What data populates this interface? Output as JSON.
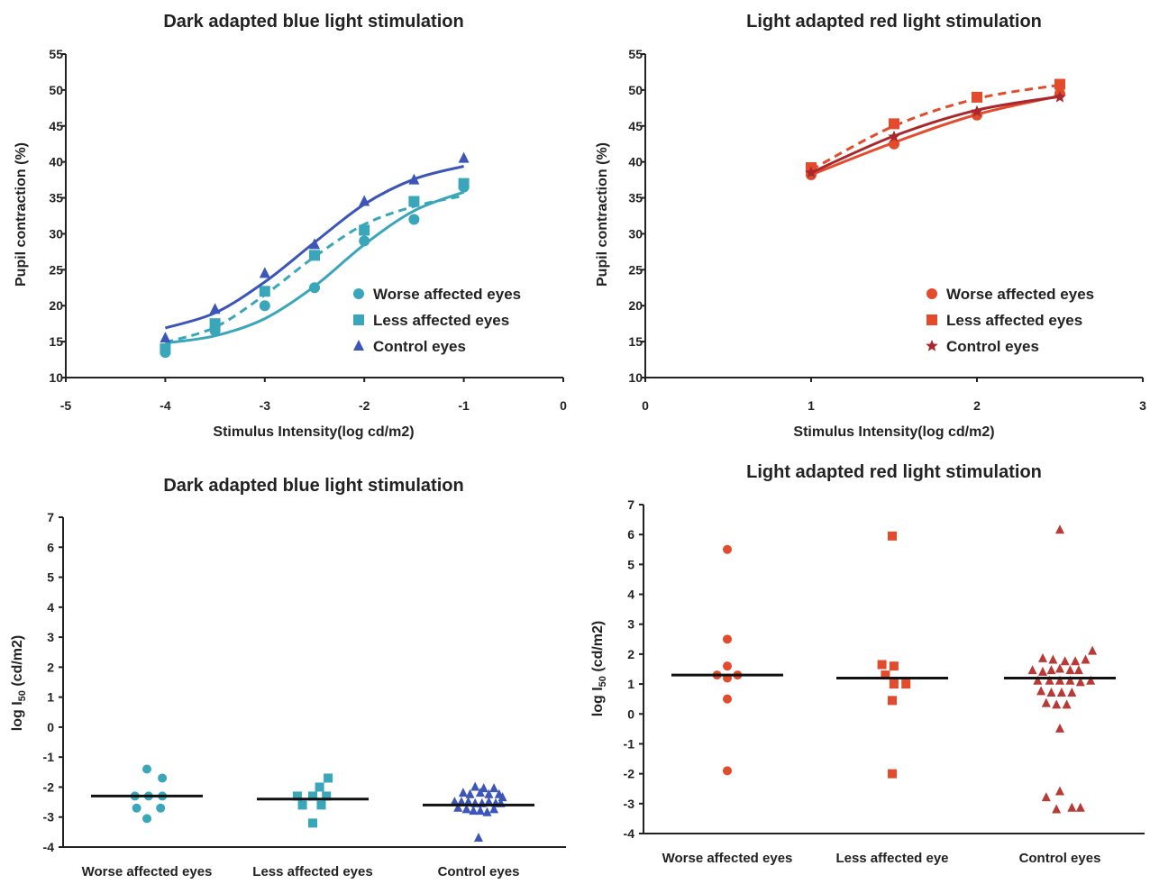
{
  "chart_data": [
    {
      "type": "line",
      "title": "Dark adapted blue light stimulation",
      "xlabel": "Stimulus Intensity(log cd/m2)",
      "ylabel": "Pupil contraction (%)",
      "xlim": [
        -5,
        0
      ],
      "ylim": [
        10,
        55
      ],
      "xticks": [
        "-5",
        "-4",
        "-3",
        "-2",
        "-1",
        "0"
      ],
      "yticks": [
        "10",
        "15",
        "20",
        "25",
        "30",
        "35",
        "40",
        "45",
        "50",
        "55"
      ],
      "legend_position": "bottom-right",
      "x": [
        -4,
        -3.5,
        -3,
        -2.5,
        -2,
        -1.5,
        -1
      ],
      "series": [
        {
          "name": "Worse affected eyes",
          "marker": "circle",
          "dash": "solid",
          "color": "#3aa6b9",
          "values": [
            13.5,
            16.5,
            20.0,
            22.5,
            29.0,
            32.0,
            36.5
          ],
          "fit": [
            14.8,
            15.8,
            18.2,
            22.7,
            28.5,
            33.2,
            35.8
          ]
        },
        {
          "name": "Less affected eyes",
          "marker": "square",
          "dash": "dashed",
          "color": "#3aa6b9",
          "values": [
            14.0,
            17.5,
            22.0,
            27.0,
            30.5,
            34.5,
            37.0
          ],
          "fit": [
            14.9,
            17.0,
            21.5,
            26.8,
            31.3,
            33.8,
            35.3
          ]
        },
        {
          "name": "Control eyes",
          "marker": "triangle",
          "dash": "solid",
          "color": "#3b55b8",
          "values": [
            15.5,
            19.5,
            24.5,
            28.5,
            34.5,
            37.5,
            40.5
          ],
          "fit": [
            16.9,
            19.0,
            23.3,
            28.8,
            34.1,
            37.6,
            39.4
          ]
        }
      ]
    },
    {
      "type": "line",
      "title": "Light adapted red light stimulation",
      "xlabel": "Stimulus Intensity(log cd/m2)",
      "ylabel": "Pupil contraction (%)",
      "xlim": [
        0,
        3
      ],
      "ylim": [
        10,
        55
      ],
      "xticks": [
        "0",
        "1",
        "2",
        "3"
      ],
      "yticks": [
        "10",
        "15",
        "20",
        "25",
        "30",
        "35",
        "40",
        "45",
        "50",
        "55"
      ],
      "legend_position": "bottom-right",
      "x": [
        1,
        1.5,
        2,
        2.5
      ],
      "series": [
        {
          "name": "Worse affected eyes",
          "marker": "circle",
          "dash": "solid",
          "color": "#e24b2c",
          "values": [
            38.2,
            42.5,
            46.5,
            49.5
          ],
          "fit": [
            38.2,
            42.7,
            46.6,
            49.2
          ]
        },
        {
          "name": "Less affected eyes",
          "marker": "square",
          "dash": "dashed",
          "color": "#e24b2c",
          "values": [
            39.2,
            45.3,
            49.0,
            50.8
          ],
          "fit": [
            38.9,
            45.0,
            48.8,
            50.7
          ]
        },
        {
          "name": "Control eyes",
          "marker": "star",
          "dash": "solid",
          "color": "#a8282e",
          "values": [
            38.5,
            43.5,
            47.0,
            49.0
          ],
          "fit": [
            38.5,
            43.6,
            47.2,
            49.1
          ]
        }
      ]
    },
    {
      "type": "scatter",
      "title": "Dark adapted blue light stimulation",
      "xlabel": "",
      "ylabel": "log I50 (cd/m2)",
      "ylim": [
        -4,
        7
      ],
      "yticks": [
        "-4",
        "-3",
        "-2",
        "-1",
        "0",
        "1",
        "2",
        "3",
        "4",
        "5",
        "6",
        "7"
      ],
      "categories": [
        "Worse affected eyes",
        "Less affected eyes",
        "Control eyes"
      ],
      "series": [
        {
          "name": "Worse affected eyes",
          "marker": "circle",
          "color": "#3aa6b9",
          "median": -2.3,
          "points": [
            [
              0,
              -1.4
            ],
            [
              -0.35,
              -2.3
            ],
            [
              0.05,
              -2.3
            ],
            [
              0.45,
              -1.7
            ],
            [
              0.45,
              -2.3
            ],
            [
              -0.3,
              -2.7
            ],
            [
              0.4,
              -2.7
            ],
            [
              0,
              -3.05
            ]
          ]
        },
        {
          "name": "Less affected eyes",
          "marker": "square",
          "color": "#3aa6b9",
          "median": -2.4,
          "points": [
            [
              0.45,
              -1.7
            ],
            [
              0.2,
              -2.0
            ],
            [
              -0.45,
              -2.3
            ],
            [
              0,
              -2.3
            ],
            [
              0.4,
              -2.3
            ],
            [
              -0.3,
              -2.6
            ],
            [
              0.25,
              -2.6
            ],
            [
              0,
              -3.2
            ]
          ]
        },
        {
          "name": "Control eyes",
          "marker": "triangle",
          "color": "#3b55b8",
          "median": -2.6,
          "points": [
            [
              -0.1,
              -2.0
            ],
            [
              0.15,
              -2.05
            ],
            [
              0.45,
              -2.05
            ],
            [
              -0.45,
              -2.2
            ],
            [
              -0.25,
              -2.25
            ],
            [
              0.05,
              -2.2
            ],
            [
              0.3,
              -2.25
            ],
            [
              0.6,
              -2.25
            ],
            [
              0.7,
              -2.35
            ],
            [
              -0.7,
              -2.5
            ],
            [
              -0.5,
              -2.5
            ],
            [
              -0.3,
              -2.5
            ],
            [
              -0.1,
              -2.55
            ],
            [
              0.1,
              -2.55
            ],
            [
              0.3,
              -2.5
            ],
            [
              0.5,
              -2.55
            ],
            [
              0.65,
              -2.55
            ],
            [
              -0.6,
              -2.7
            ],
            [
              -0.35,
              -2.75
            ],
            [
              -0.15,
              -2.8
            ],
            [
              0.05,
              -2.8
            ],
            [
              0.25,
              -2.85
            ],
            [
              0.45,
              -2.75
            ],
            [
              0,
              -3.7
            ]
          ]
        }
      ]
    },
    {
      "type": "scatter",
      "title": "Light adapted red light stimulation",
      "xlabel": "",
      "ylabel": "log I50 (cd/m2)",
      "ylim": [
        -4,
        7
      ],
      "yticks": [
        "-4",
        "-3",
        "-2",
        "-1",
        "0",
        "1",
        "2",
        "3",
        "4",
        "5",
        "6",
        "7"
      ],
      "categories": [
        "Worse affected eyes",
        "Less affected eye",
        "Control eyes"
      ],
      "series": [
        {
          "name": "Worse affected eyes",
          "marker": "circle",
          "color": "#e24b2c",
          "median": 1.3,
          "points": [
            [
              0,
              5.5
            ],
            [
              0,
              2.5
            ],
            [
              0,
              1.6
            ],
            [
              -0.3,
              1.3
            ],
            [
              0.3,
              1.3
            ],
            [
              0,
              1.2
            ],
            [
              0,
              0.5
            ],
            [
              0,
              -1.9
            ]
          ]
        },
        {
          "name": "Less affected eye",
          "marker": "square",
          "color": "#e24b2c",
          "median": 1.2,
          "points": [
            [
              0,
              5.95
            ],
            [
              -0.3,
              1.65
            ],
            [
              0.05,
              1.6
            ],
            [
              -0.2,
              1.3
            ],
            [
              0.05,
              1.0
            ],
            [
              0.4,
              1.0
            ],
            [
              0,
              0.45
            ],
            [
              0,
              -2.0
            ]
          ]
        },
        {
          "name": "Control eyes",
          "marker": "triangle",
          "color": "#b83a36",
          "median": 1.2,
          "points": [
            [
              0,
              6.15
            ],
            [
              0.95,
              2.1
            ],
            [
              -0.5,
              1.85
            ],
            [
              -0.2,
              1.8
            ],
            [
              0.15,
              1.75
            ],
            [
              0.45,
              1.75
            ],
            [
              0.75,
              1.8
            ],
            [
              -0.8,
              1.45
            ],
            [
              -0.5,
              1.4
            ],
            [
              -0.25,
              1.45
            ],
            [
              0,
              1.5
            ],
            [
              0.3,
              1.45
            ],
            [
              0.55,
              1.45
            ],
            [
              -0.65,
              1.1
            ],
            [
              -0.3,
              1.1
            ],
            [
              0,
              1.1
            ],
            [
              0.3,
              1.1
            ],
            [
              0.6,
              1.05
            ],
            [
              0.9,
              1.1
            ],
            [
              -0.55,
              0.75
            ],
            [
              -0.25,
              0.7
            ],
            [
              0.05,
              0.7
            ],
            [
              0.35,
              0.7
            ],
            [
              -0.4,
              0.35
            ],
            [
              -0.1,
              0.3
            ],
            [
              0.2,
              0.3
            ],
            [
              0,
              -0.5
            ],
            [
              -0.4,
              -2.8
            ],
            [
              0,
              -2.6
            ],
            [
              0.35,
              -3.15
            ],
            [
              -0.1,
              -3.2
            ],
            [
              0.6,
              -3.15
            ]
          ]
        }
      ]
    }
  ]
}
